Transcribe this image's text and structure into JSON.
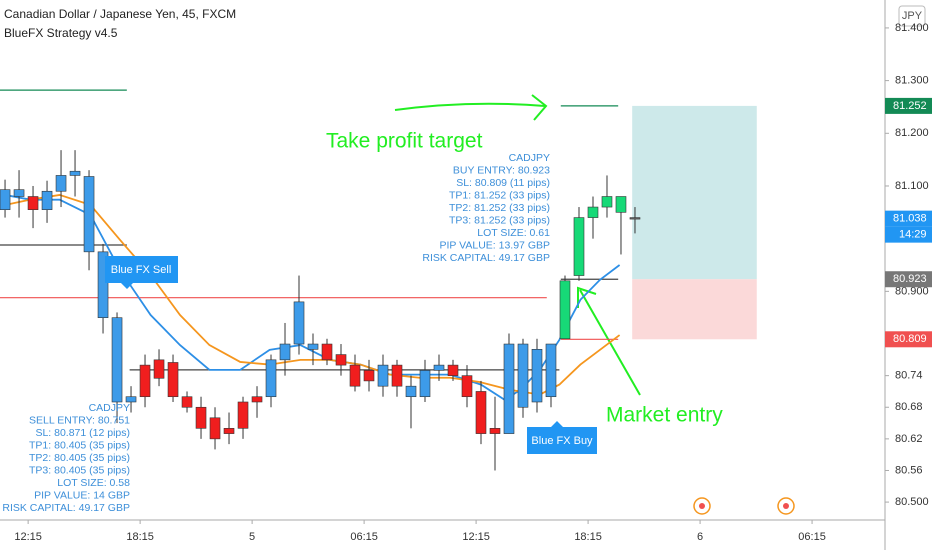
{
  "header": {
    "symbol": "Canadian Dollar / Japanese Yen, 45, FXCM",
    "indicator": "BlueFX Strategy v4.5",
    "currency": "JPY"
  },
  "chart_data": {
    "type": "candlestick",
    "ylim": [
      80.466,
      81.453
    ],
    "yticks": [
      {
        "value": 81.4,
        "label": "81.400"
      },
      {
        "value": 81.3,
        "label": "81.300"
      },
      {
        "value": 81.2,
        "label": "81.200"
      },
      {
        "value": 81.1,
        "label": "81.100"
      },
      {
        "value": 80.9,
        "label": "80.900"
      },
      80.74,
      80.68,
      80.62,
      80.56,
      {
        "value": 80.5,
        "label": "80.500"
      }
    ],
    "xlim": [
      -0.36,
      62.86
    ],
    "xticks": [
      {
        "value": 1.65,
        "label": "12:15"
      },
      {
        "value": 9.65,
        "label": "18:15"
      },
      {
        "value": 17.65,
        "label": "5"
      },
      {
        "value": 25.65,
        "label": "06:15"
      },
      {
        "value": 33.65,
        "label": "12:15"
      },
      {
        "value": 41.65,
        "label": "18:15"
      },
      {
        "value": 49.65,
        "label": "6"
      },
      {
        "value": 57.65,
        "label": "06:15"
      }
    ],
    "open": [
      81.055,
      81.093,
      81.08,
      81.055,
      81.09,
      81.12,
      81.118,
      80.975,
      80.85,
      80.69,
      80.76,
      80.77,
      80.765,
      80.7,
      80.68,
      80.66,
      80.64,
      80.69,
      80.7,
      80.7,
      80.77,
      80.8,
      80.79,
      80.8,
      80.78,
      80.76,
      80.75,
      80.72,
      80.76,
      80.72,
      80.7,
      80.75,
      80.76,
      80.74,
      80.71,
      80.64,
      80.63,
      80.68,
      80.69,
      80.7,
      80.81,
      80.93,
      81.04,
      81.06,
      81.08,
      81.04
    ],
    "high": [
      81.112,
      81.13,
      81.1,
      81.11,
      81.168,
      81.168,
      81.13,
      80.99,
      80.86,
      80.72,
      80.78,
      80.79,
      80.78,
      80.71,
      80.7,
      80.68,
      80.67,
      80.7,
      80.72,
      80.78,
      80.84,
      80.93,
      80.82,
      80.81,
      80.8,
      80.78,
      80.77,
      80.78,
      80.77,
      80.74,
      80.77,
      80.78,
      80.77,
      80.76,
      80.73,
      80.7,
      80.82,
      80.81,
      80.81,
      80.8,
      80.93,
      81.06,
      81.08,
      81.12,
      81.08,
      81.06
    ],
    "low": [
      81.04,
      81.04,
      81.02,
      81.03,
      81.06,
      81.08,
      80.94,
      80.82,
      80.65,
      80.67,
      80.68,
      80.72,
      80.69,
      80.67,
      80.62,
      80.6,
      80.61,
      80.62,
      80.66,
      80.68,
      80.74,
      80.78,
      80.76,
      80.76,
      80.74,
      80.71,
      80.71,
      80.7,
      80.7,
      80.64,
      80.69,
      80.73,
      80.73,
      80.68,
      80.61,
      80.56,
      80.63,
      80.66,
      80.67,
      80.68,
      80.81,
      80.92,
      81.0,
      81.04,
      80.97,
      81.01
    ],
    "close": [
      81.093,
      81.08,
      81.055,
      81.09,
      81.12,
      81.128,
      80.975,
      80.85,
      80.69,
      80.7,
      80.7,
      80.735,
      80.7,
      80.68,
      80.64,
      80.62,
      80.63,
      80.64,
      80.69,
      80.77,
      80.8,
      80.88,
      80.8,
      80.77,
      80.76,
      80.72,
      80.73,
      80.76,
      80.72,
      80.7,
      80.75,
      80.76,
      80.74,
      80.7,
      80.63,
      80.63,
      80.8,
      80.8,
      80.79,
      80.8,
      80.92,
      81.04,
      81.06,
      81.08,
      81.05,
      81.038
    ],
    "candle_colors": [
      "#3d9be9",
      "#3d9be9",
      "#f01e1e",
      "#3d9be9",
      "#3d9be9",
      "#3d9be9",
      "#3d9be9",
      "#3d9be9",
      "#3d9be9",
      "#3d9be9",
      "#f01e1e",
      "#f01e1e",
      "#f01e1e",
      "#f01e1e",
      "#f01e1e",
      "#f01e1e",
      "#f01e1e",
      "#f01e1e",
      "#f01e1e",
      "#3d9be9",
      "#3d9be9",
      "#3d9be9",
      "#3d9be9",
      "#f01e1e",
      "#f01e1e",
      "#f01e1e",
      "#f01e1e",
      "#3d9be9",
      "#f01e1e",
      "#3d9be9",
      "#3d9be9",
      "#3d9be9",
      "#f01e1e",
      "#f01e1e",
      "#f01e1e",
      "#f01e1e",
      "#3d9be9",
      "#3d9be9",
      "#3d9be9",
      "#3d9be9",
      "#17d977",
      "#17d977",
      "#17d977",
      "#17d977",
      "#17d977",
      "#666666"
    ],
    "lines": [
      {
        "color": "#2d8fe6",
        "x": [
          0,
          1.8,
          3.9,
          6.1,
          8.2,
          10.4,
          12.5,
          14.6,
          16.8,
          18.9,
          21.1,
          23.2,
          25.4,
          27.5,
          29.6,
          31.8,
          34.0,
          35.7,
          36.8,
          38.2,
          39.6,
          41.1,
          42.5,
          43.9
        ],
        "values": [
          81.083,
          81.074,
          81.074,
          81.045,
          80.941,
          80.855,
          80.798,
          80.751,
          80.751,
          80.789,
          80.798,
          80.77,
          80.761,
          80.742,
          80.742,
          80.742,
          80.723,
          80.694,
          80.713,
          80.751,
          80.808,
          80.884,
          80.922,
          80.95
        ]
      },
      {
        "color": "#f5961e",
        "x": [
          0,
          1.8,
          3.9,
          6.1,
          8.2,
          10.4,
          12.5,
          14.6,
          16.8,
          18.9,
          21.1,
          23.2,
          25.4,
          27.5,
          29.6,
          31.8,
          33.9,
          36.1,
          38.2,
          39.6,
          41.1,
          42.5,
          43.9
        ],
        "values": [
          81.064,
          81.074,
          81.083,
          81.064,
          80.998,
          80.931,
          80.855,
          80.798,
          80.766,
          80.761,
          80.77,
          80.77,
          80.761,
          80.742,
          80.736,
          80.736,
          80.728,
          80.713,
          80.704,
          80.723,
          80.761,
          80.789,
          80.817
        ]
      }
    ],
    "levels": [
      {
        "value": 81.282,
        "x": [
          -0.36,
          8.7
        ],
        "color": "#138a55"
      },
      {
        "value": 80.988,
        "x": [
          -0.36,
          8.7
        ],
        "color": "#444444"
      },
      {
        "value": 80.888,
        "x": [
          -0.36,
          38.7
        ],
        "color": "#f05050"
      },
      {
        "value": 80.751,
        "x": [
          8.9,
          39.6
        ],
        "color": "#444444"
      },
      {
        "value": 81.252,
        "x": [
          39.7,
          43.8
        ],
        "color": "#138a55"
      },
      {
        "value": 80.923,
        "x": [
          39.7,
          43.8
        ],
        "color": "#444444"
      },
      {
        "value": 80.809,
        "x": [
          39.7,
          43.8
        ],
        "color": "#f05050"
      }
    ],
    "zones": [
      {
        "from": 80.923,
        "to": 81.252,
        "x": [
          44.8,
          53.7
        ],
        "color": "#cde9ea"
      },
      {
        "from": 80.809,
        "to": 80.923,
        "x": [
          44.8,
          53.7
        ],
        "color": "#fbd9d9"
      }
    ],
    "price_tags": [
      {
        "value": 81.252,
        "color": "#138a55"
      },
      {
        "value": 81.038,
        "color": "#2196f3"
      },
      {
        "value": 80.923,
        "color": "#777777"
      },
      {
        "value": 80.809,
        "color": "#f05050"
      }
    ],
    "countdown": "14:29",
    "sell_signal": "Blue FX Sell",
    "buy_signal": "Blue FX Buy",
    "sell_info": [
      "CADJPY",
      "SELL ENTRY: 80.751",
      "SL: 80.871 (12 pips)",
      "TP1: 80.405 (35 pips)",
      "TP2: 80.405 (35 pips)",
      "TP3: 80.405 (35 pips)",
      "LOT SIZE: 0.58",
      "PIP VALUE: 14 GBP",
      "RISK CAPITAL: 49.17 GBP"
    ],
    "buy_info": [
      "CADJPY",
      "BUY ENTRY: 80.923",
      "SL: 80.809 (11 pips)",
      "TP1: 81.252 (33 pips)",
      "TP2: 81.252 (33 pips)",
      "TP3: 81.252 (33 pips)",
      "LOT SIZE: 0.61",
      "PIP VALUE: 13.97 GBP",
      "RISK CAPITAL: 49.17 GBP"
    ],
    "annotations": [
      "Take profit target",
      "Market entry"
    ]
  }
}
